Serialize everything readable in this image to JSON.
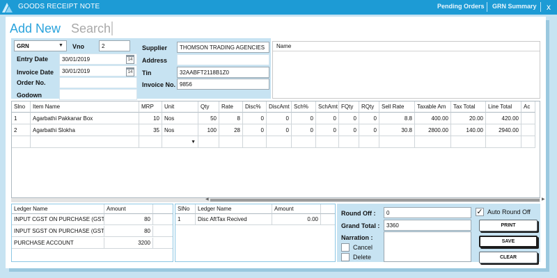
{
  "window": {
    "title": "GOODS RECEIPT NOTE",
    "links": [
      "Pending Orders",
      "GRN Summary"
    ],
    "close_glyph": "x"
  },
  "tabs": {
    "add": "Add New",
    "search": "Search"
  },
  "form": {
    "doc_type": "GRN",
    "vno_label": "Vno",
    "vno": "2",
    "entry_date_label": "Entry Date",
    "entry_date": "30/01/2019",
    "invoice_date_label": "Invoice Date",
    "invoice_date": "30/01/2019",
    "calendar_day": "14",
    "order_no_label": "Order No.",
    "order_no": "",
    "godown_label": "Godown",
    "godown": "",
    "supplier_label": "Supplier",
    "supplier": "THOMSON TRADING AGENCIES",
    "address_label": "Address",
    "address": "",
    "tin_label": "Tin",
    "tin": "32AABFT2118B1Z0",
    "invoice_no_label": "Invoice No.",
    "invoice_no": "9856"
  },
  "name_list": {
    "header": "Name"
  },
  "grid": {
    "headers": [
      "Slno",
      "Item Name",
      "MRP",
      "Unit",
      "Qty",
      "Rate",
      "Disc%",
      "DiscAmt",
      "Sch%",
      "SchAmt",
      "FQty",
      "RQty",
      "Sell Rate",
      "Taxable Am",
      "Tax Total",
      "Line Total",
      "Ac"
    ],
    "rows": [
      [
        "1",
        "Agarbathi Pakkanar Box",
        "10",
        "Nos",
        "50",
        "8",
        "0",
        "0",
        "0",
        "0",
        "0",
        "0",
        "8.8",
        "400.00",
        "20.00",
        "420.00",
        ""
      ],
      [
        "2",
        "Agarbathi Slokha",
        "35",
        "Nos",
        "100",
        "28",
        "0",
        "0",
        "0",
        "0",
        "0",
        "0",
        "30.8",
        "2800.00",
        "140.00",
        "2940.00",
        ""
      ]
    ]
  },
  "ledger": {
    "headers": [
      "Ledger Name",
      "Amount"
    ],
    "rows": [
      [
        "INPUT CGST ON PURCHASE (GST",
        "80"
      ],
      [
        "INPUT SGST ON PURCHASE (GST",
        "80"
      ],
      [
        "PURCHASE ACCOUNT",
        "3200"
      ]
    ]
  },
  "other_ledger": {
    "headers": [
      "SlNo",
      "Ledger Name",
      "Amount"
    ],
    "rows": [
      [
        "1",
        "Disc AftTax Recived",
        "0.00"
      ]
    ]
  },
  "totals": {
    "round_off_label": "Round Off :",
    "round_off": "0",
    "grand_total_label": "Grand Total :",
    "grand_total": "3360",
    "narration_label": "Narration :",
    "narration": "",
    "auto_round_off_label": "Auto Round Off",
    "auto_round_off_checked": true,
    "cancel_label": "Cancel",
    "delete_label": "Delete"
  },
  "buttons": {
    "print": "PRINT",
    "save": "SAVE",
    "clear": "CLEAR"
  },
  "colors": {
    "accent": "#1d9bd5",
    "panel_bg": "#c7e3f2",
    "tab_active": "#2aa3dc"
  }
}
